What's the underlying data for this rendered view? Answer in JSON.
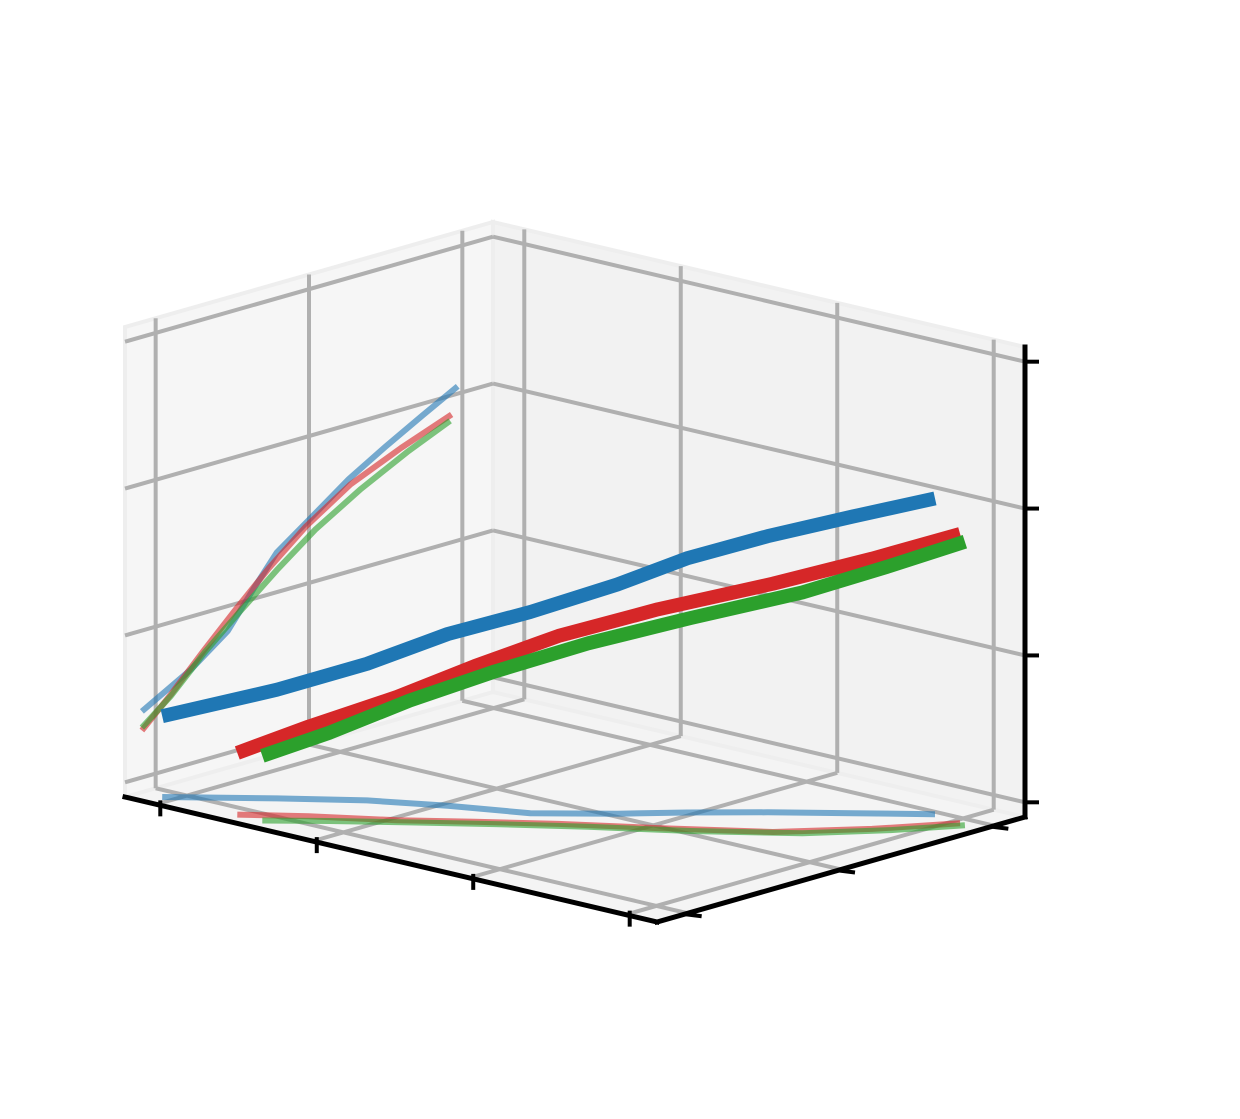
{
  "chart_data": {
    "type": "line",
    "projection": "3d",
    "title": "",
    "xlabel": "",
    "ylabel": "",
    "zlabel": "",
    "tick_labels_shown": false,
    "grid": true,
    "pane_color": "#f2f2f2",
    "grid_color": "#b0b0b0",
    "axis_color": "#000000",
    "x_ticks": [
      0,
      1,
      2,
      3
    ],
    "y_ticks": [
      0,
      1,
      2
    ],
    "z_ticks": [
      0,
      1,
      2,
      3
    ],
    "xlim": [
      -0.2,
      3.2
    ],
    "ylim": [
      -0.2,
      2.2
    ],
    "zlim": [
      -0.1,
      3.1
    ],
    "series": [
      {
        "color": "#1f77b4",
        "points": [
          [
            -0.07,
            -0.09,
            0.45
          ],
          [
            0.35,
            0.23,
            0.64
          ],
          [
            0.69,
            0.47,
            0.83
          ],
          [
            1.04,
            0.64,
            1.07
          ],
          [
            1.42,
            0.79,
            1.27
          ],
          [
            1.73,
            1.04,
            1.46
          ],
          [
            1.96,
            1.26,
            1.63
          ],
          [
            2.24,
            1.5,
            1.78
          ],
          [
            2.55,
            1.74,
            1.92
          ],
          [
            2.85,
            1.97,
            2.05
          ]
        ]
      },
      {
        "color": "#d62728",
        "points": [
          [
            0.41,
            -0.09,
            0.32
          ],
          [
            0.68,
            0.1,
            0.51
          ],
          [
            1.04,
            0.31,
            0.74
          ],
          [
            1.33,
            0.52,
            0.96
          ],
          [
            1.65,
            0.74,
            1.18
          ],
          [
            2.05,
            0.98,
            1.39
          ],
          [
            2.5,
            1.27,
            1.59
          ],
          [
            2.81,
            1.6,
            1.74
          ],
          [
            3.05,
            1.93,
            1.87
          ]
        ]
      },
      {
        "color": "#2ca02c",
        "points": [
          [
            0.57,
            -0.09,
            0.34
          ],
          [
            0.81,
            0.1,
            0.5
          ],
          [
            1.11,
            0.32,
            0.73
          ],
          [
            1.43,
            0.55,
            0.94
          ],
          [
            1.79,
            0.79,
            1.15
          ],
          [
            2.2,
            1.04,
            1.35
          ],
          [
            2.62,
            1.34,
            1.54
          ],
          [
            2.89,
            1.64,
            1.7
          ],
          [
            3.09,
            1.92,
            1.83
          ]
        ]
      }
    ]
  }
}
